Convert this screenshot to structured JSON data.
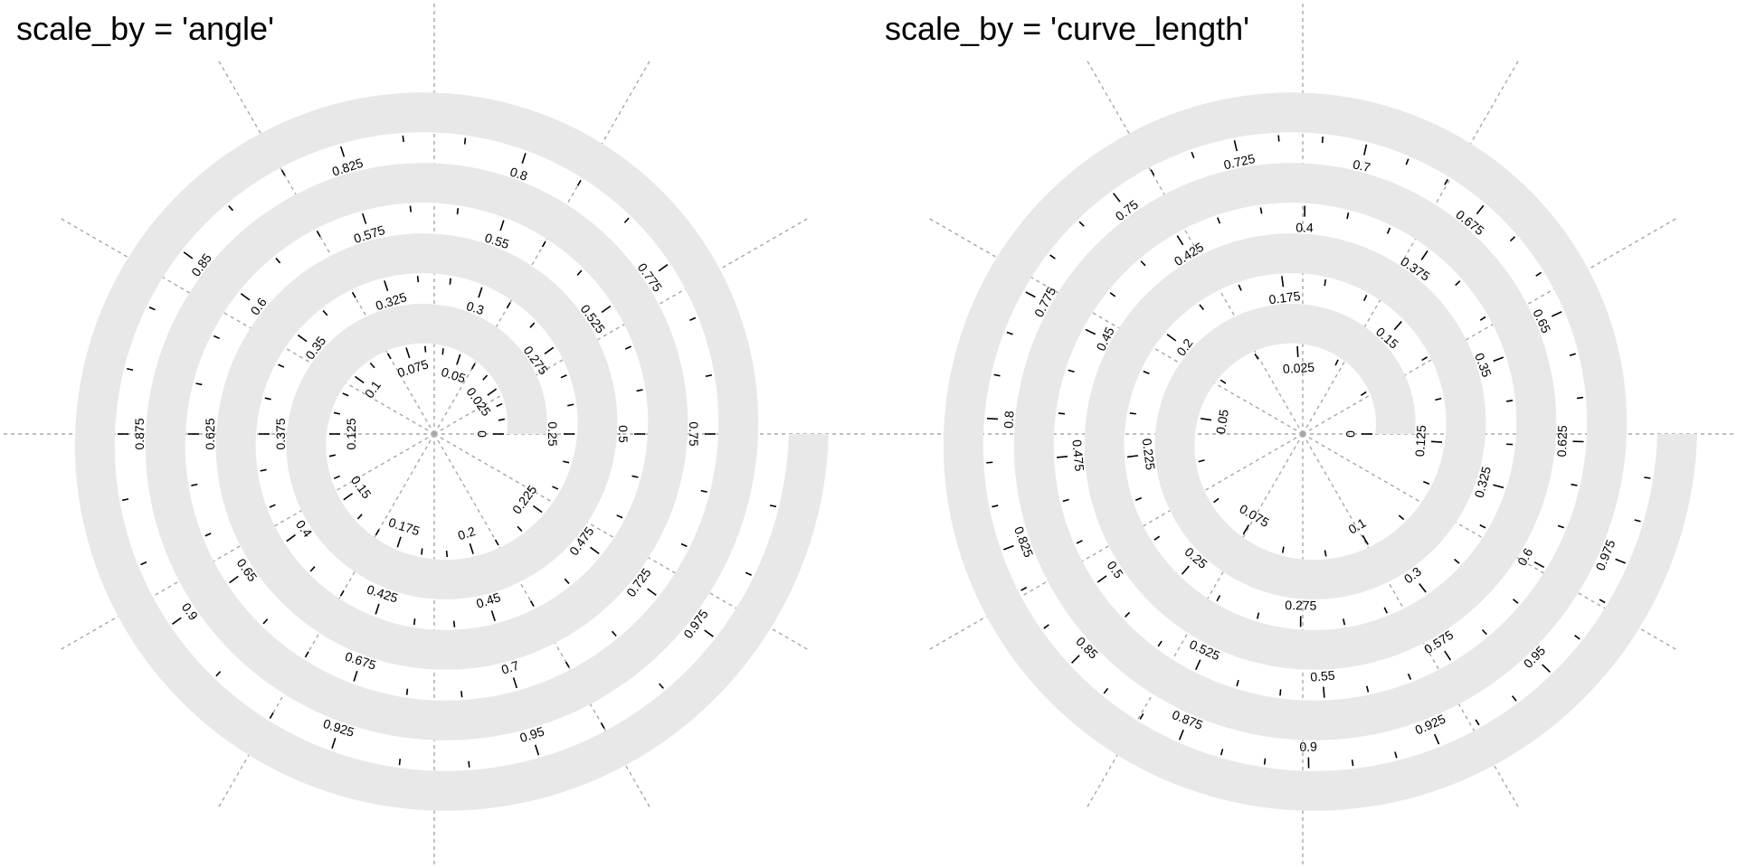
{
  "panels": [
    {
      "id": "angle",
      "title": "scale_by = 'angle'",
      "scale_by": "angle",
      "major_breaks": [
        "0",
        "0.025",
        "0.05",
        "0.075",
        "0.1",
        "0.125",
        "0.15",
        "0.175",
        "0.2",
        "0.225",
        "0.25",
        "0.275",
        "0.3",
        "0.325",
        "0.35",
        "0.375",
        "0.4",
        "0.425",
        "0.45",
        "0.475",
        "0.5",
        "0.525",
        "0.55",
        "0.575",
        "0.6",
        "0.625",
        "0.65",
        "0.675",
        "0.7",
        "0.725",
        "0.75",
        "0.775",
        "0.8",
        "0.825",
        "0.85",
        "0.875",
        "0.9",
        "0.925",
        "0.95",
        "0.975"
      ],
      "minor_ticks_per_interval": 2
    },
    {
      "id": "curve-length",
      "title": "scale_by = 'curve_length'",
      "scale_by": "curve_length",
      "major_breaks": [
        "0",
        "0.025",
        "0.05",
        "0.075",
        "0.1",
        "0.125",
        "0.15",
        "0.175",
        "0.2",
        "0.225",
        "0.25",
        "0.275",
        "0.3",
        "0.325",
        "0.35",
        "0.375",
        "0.4",
        "0.425",
        "0.45",
        "0.475",
        "0.5",
        "0.525",
        "0.55",
        "0.575",
        "0.6",
        "0.625",
        "0.65",
        "0.675",
        "0.7",
        "0.725",
        "0.75",
        "0.775",
        "0.8",
        "0.825",
        "0.85",
        "0.875",
        "0.9",
        "0.925",
        "0.95",
        "0.975"
      ],
      "minor_ticks_per_interval": 2
    }
  ],
  "spiral": {
    "turns": 4,
    "band_color": "#e8e8e8",
    "guide_color": "#a8a8a8",
    "guide_spokes": 12,
    "tick_color": "#000000"
  }
}
